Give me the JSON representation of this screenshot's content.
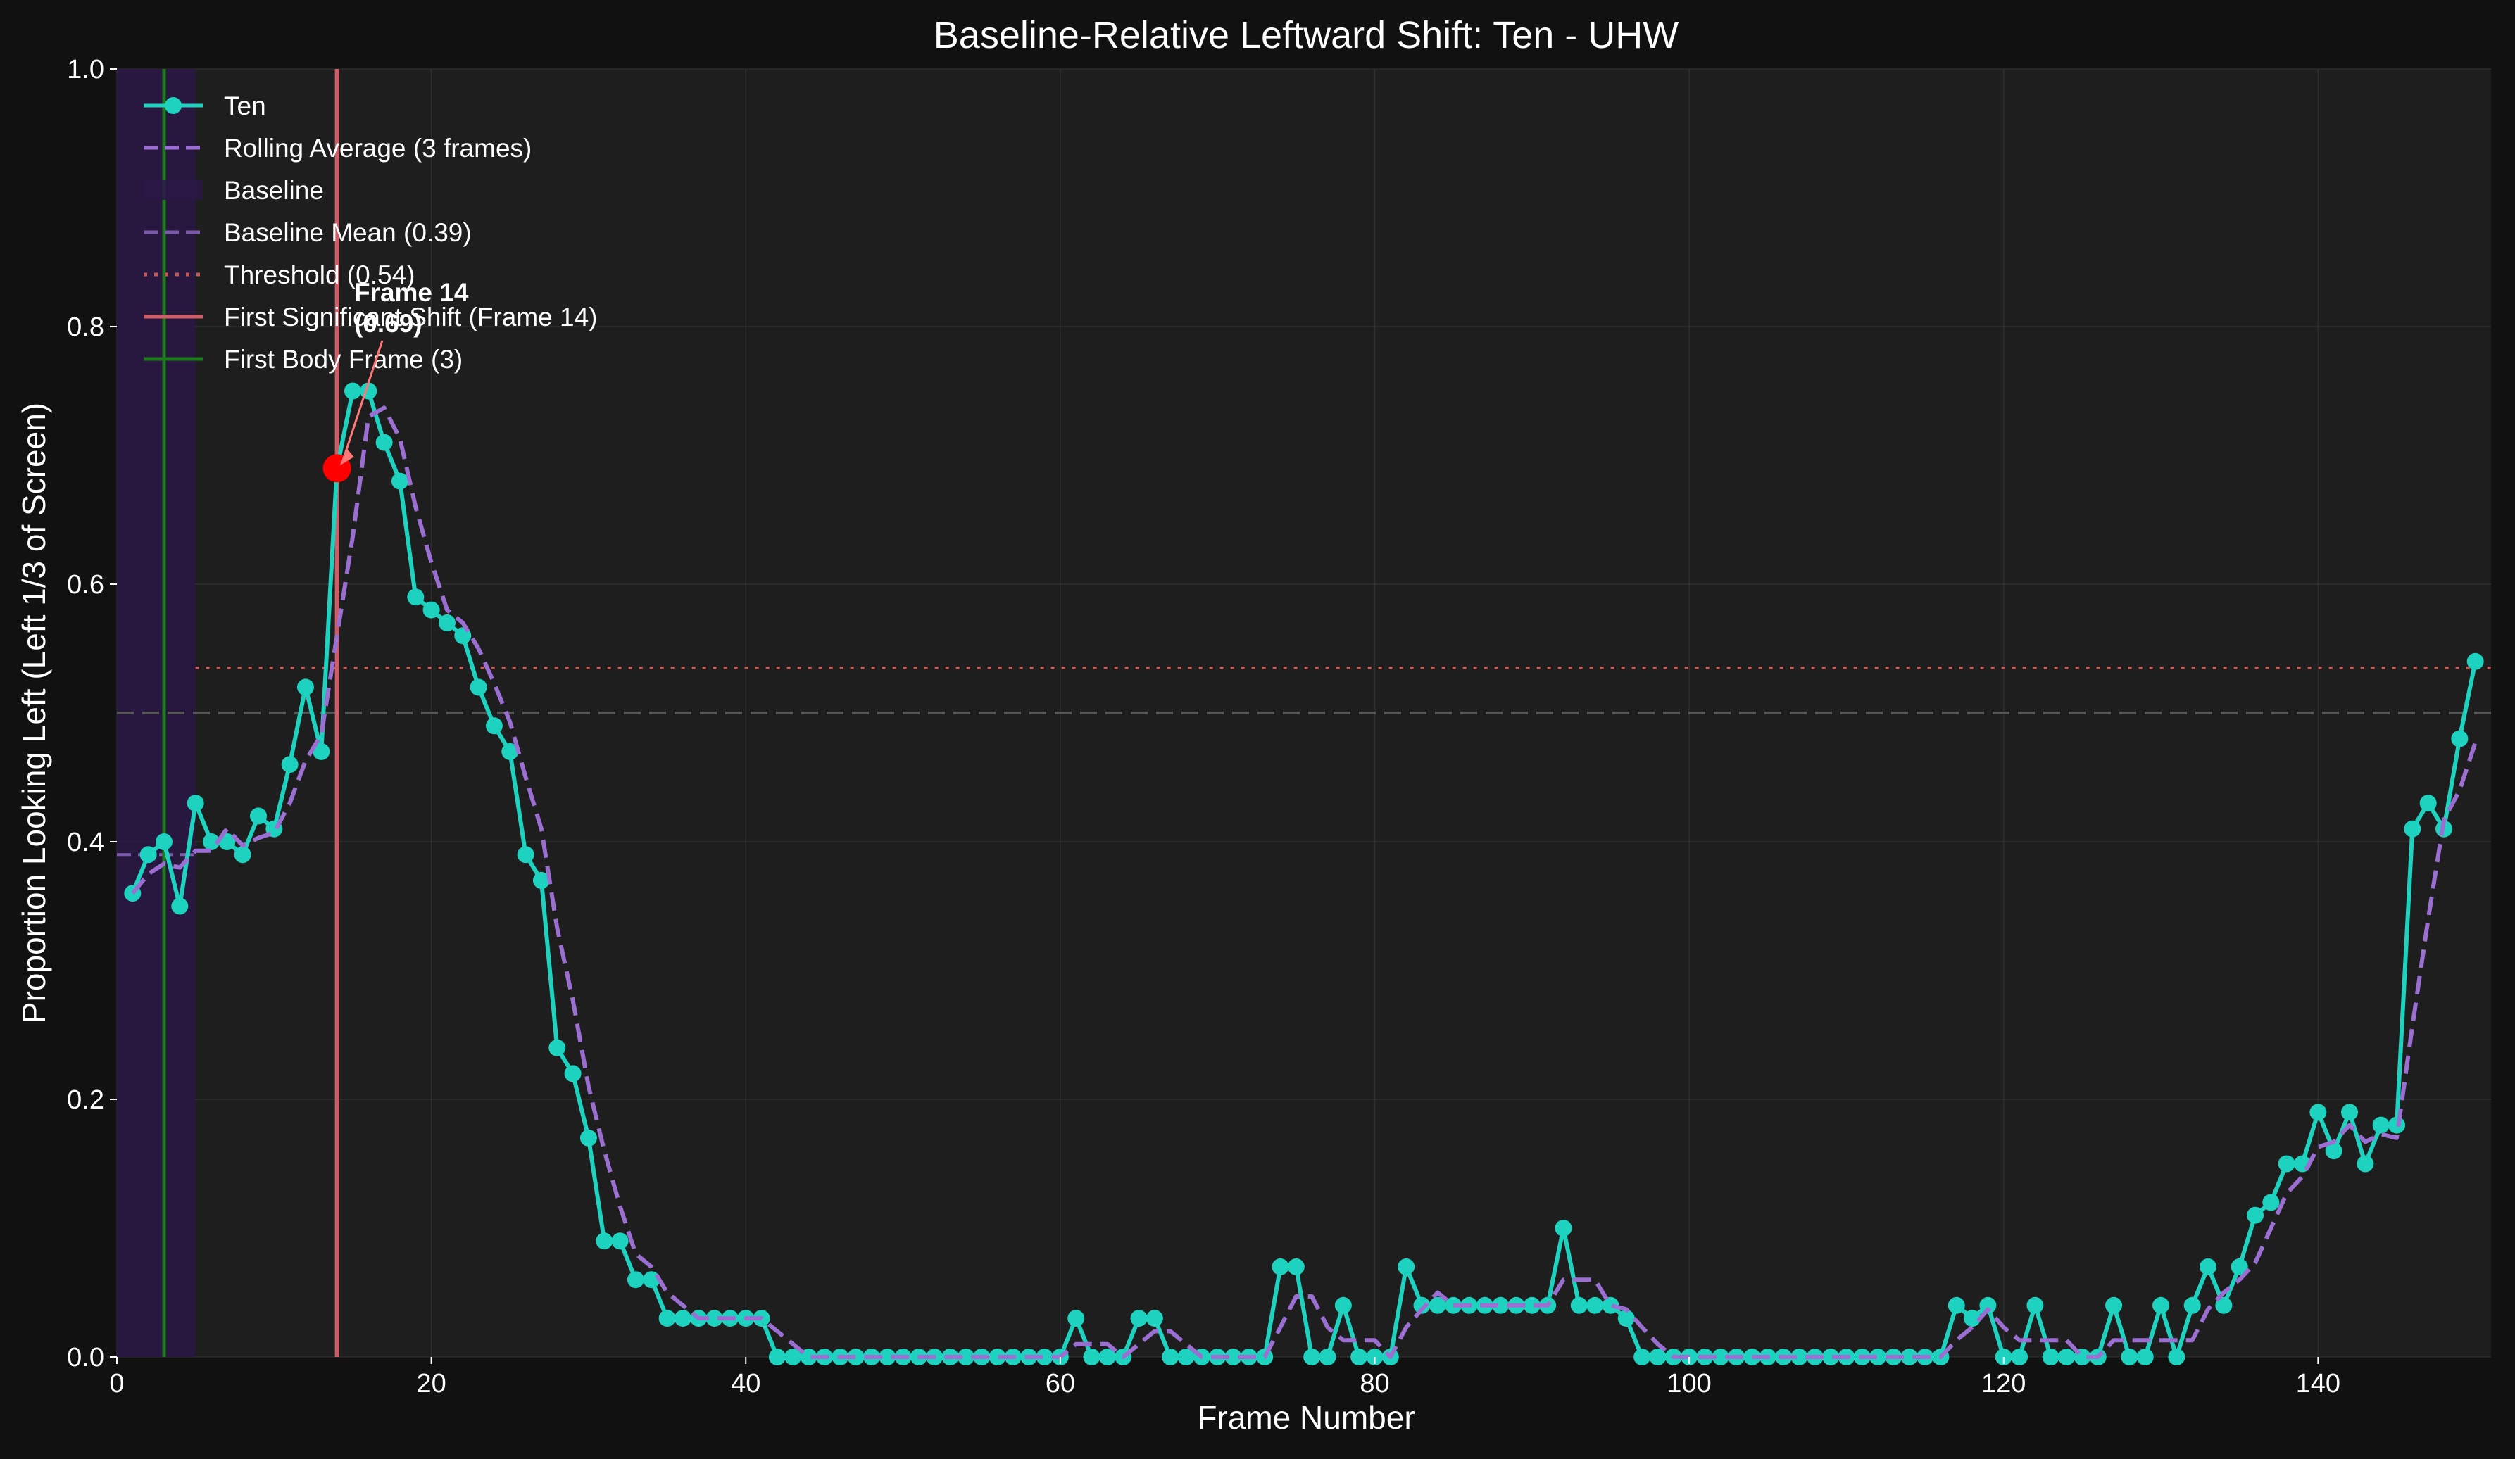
{
  "chart_data": {
    "type": "line",
    "title": "Baseline-Relative Leftward Shift: Ten - UHW",
    "xlabel": "Frame Number",
    "ylabel": "Proportion Looking Left (Left 1/3 of Screen)",
    "xlim": [
      0,
      151
    ],
    "ylim": [
      0,
      1.0
    ],
    "x_ticks": [
      0,
      20,
      40,
      60,
      80,
      100,
      120,
      140
    ],
    "y_ticks": [
      0.0,
      0.2,
      0.4,
      0.6,
      0.8,
      1.0
    ],
    "x_tick_labels": [
      "0",
      "20",
      "40",
      "60",
      "80",
      "100",
      "120",
      "140"
    ],
    "y_tick_labels": [
      "0.0",
      "0.2",
      "0.4",
      "0.6",
      "0.8",
      "1.0"
    ],
    "grid": true,
    "legend_position": "top-left",
    "colors": {
      "background": "#111111",
      "plot_background": "#1e1e1e",
      "series": "#1ed2c0",
      "rolling": "#9b6fd1",
      "baseline_region": "#2a1846",
      "baseline_mean": "#7a5aa8",
      "threshold": "#c45c5c",
      "first_shift": "#d05c66",
      "first_body": "#1f7a1f",
      "reference": "#555555",
      "highlight": "#ff0000"
    },
    "series": [
      {
        "name": "Ten",
        "x": [
          1,
          2,
          3,
          4,
          5,
          6,
          7,
          8,
          9,
          10,
          11,
          12,
          13,
          14,
          15,
          16,
          17,
          18,
          19,
          20,
          21,
          22,
          23,
          24,
          25,
          26,
          27,
          28,
          29,
          30,
          31,
          32,
          33,
          34,
          35,
          36,
          37,
          38,
          39,
          40,
          41,
          42,
          43,
          44,
          45,
          46,
          47,
          48,
          49,
          50,
          51,
          52,
          53,
          54,
          55,
          56,
          57,
          58,
          59,
          60,
          61,
          62,
          63,
          64,
          65,
          66,
          67,
          68,
          69,
          70,
          71,
          72,
          73,
          74,
          75,
          76,
          77,
          78,
          79,
          80,
          81,
          82,
          83,
          84,
          85,
          86,
          87,
          88,
          89,
          90,
          91,
          92,
          93,
          94,
          95,
          96,
          97,
          98,
          99,
          100,
          101,
          102,
          103,
          104,
          105,
          106,
          107,
          108,
          109,
          110,
          111,
          112,
          113,
          114,
          115,
          116,
          117,
          118,
          119,
          120,
          121,
          122,
          123,
          124,
          125,
          126,
          127,
          128,
          129,
          130,
          131,
          132,
          133,
          134,
          135,
          136,
          137,
          138,
          139,
          140,
          141,
          142,
          143,
          144,
          145,
          146,
          147,
          148,
          149,
          150
        ],
        "y": [
          0.36,
          0.39,
          0.4,
          0.35,
          0.43,
          0.4,
          0.4,
          0.39,
          0.42,
          0.41,
          0.46,
          0.52,
          0.47,
          0.69,
          0.75,
          0.75,
          0.71,
          0.68,
          0.59,
          0.58,
          0.57,
          0.56,
          0.52,
          0.49,
          0.47,
          0.39,
          0.37,
          0.24,
          0.22,
          0.17,
          0.09,
          0.09,
          0.06,
          0.06,
          0.03,
          0.03,
          0.03,
          0.03,
          0.03,
          0.03,
          0.03,
          0.0,
          0.0,
          0.0,
          0.0,
          0.0,
          0.0,
          0.0,
          0.0,
          0.0,
          0.0,
          0.0,
          0.0,
          0.0,
          0.0,
          0.0,
          0.0,
          0.0,
          0.0,
          0.0,
          0.03,
          0.0,
          0.0,
          0.0,
          0.03,
          0.03,
          0.0,
          0.0,
          0.0,
          0.0,
          0.0,
          0.0,
          0.0,
          0.07,
          0.07,
          0.0,
          0.0,
          0.04,
          0.0,
          0.0,
          0.0,
          0.07,
          0.04,
          0.04,
          0.04,
          0.04,
          0.04,
          0.04,
          0.04,
          0.04,
          0.04,
          0.1,
          0.04,
          0.04,
          0.04,
          0.03,
          0.0,
          0.0,
          0.0,
          0.0,
          0.0,
          0.0,
          0.0,
          0.0,
          0.0,
          0.0,
          0.0,
          0.0,
          0.0,
          0.0,
          0.0,
          0.0,
          0.0,
          0.0,
          0.0,
          0.0,
          0.04,
          0.03,
          0.04,
          0.0,
          0.0,
          0.04,
          0.0,
          0.0,
          0.0,
          0.0,
          0.04,
          0.0,
          0.0,
          0.04,
          0.0,
          0.04,
          0.07,
          0.04,
          0.07,
          0.11,
          0.12,
          0.15,
          0.15,
          0.19,
          0.16,
          0.19,
          0.15,
          0.18,
          0.18,
          0.41,
          0.43,
          0.41,
          0.48,
          0.54
        ]
      },
      {
        "name": "Rolling Average (3 frames)",
        "x": [
          1,
          2,
          3,
          4,
          5,
          6,
          7,
          8,
          9,
          10,
          11,
          12,
          13,
          14,
          15,
          16,
          17,
          18,
          19,
          20,
          21,
          22,
          23,
          24,
          25,
          26,
          27,
          28,
          29,
          30,
          31,
          32,
          33,
          34,
          35,
          36,
          37,
          38,
          39,
          40,
          41,
          42,
          43,
          44,
          45,
          46,
          47,
          48,
          49,
          50,
          51,
          52,
          53,
          54,
          55,
          56,
          57,
          58,
          59,
          60,
          61,
          62,
          63,
          64,
          65,
          66,
          67,
          68,
          69,
          70,
          71,
          72,
          73,
          74,
          75,
          76,
          77,
          78,
          79,
          80,
          81,
          82,
          83,
          84,
          85,
          86,
          87,
          88,
          89,
          90,
          91,
          92,
          93,
          94,
          95,
          96,
          97,
          98,
          99,
          100,
          101,
          102,
          103,
          104,
          105,
          106,
          107,
          108,
          109,
          110,
          111,
          112,
          113,
          114,
          115,
          116,
          117,
          118,
          119,
          120,
          121,
          122,
          123,
          124,
          125,
          126,
          127,
          128,
          129,
          130,
          131,
          132,
          133,
          134,
          135,
          136,
          137,
          138,
          139,
          140,
          141,
          142,
          143,
          144,
          145,
          146,
          147,
          148,
          149,
          150
        ],
        "y": [
          0.36,
          0.375,
          0.383,
          0.38,
          0.393,
          0.393,
          0.41,
          0.397,
          0.403,
          0.407,
          0.43,
          0.463,
          0.483,
          0.56,
          0.637,
          0.73,
          0.737,
          0.713,
          0.66,
          0.617,
          0.58,
          0.57,
          0.55,
          0.523,
          0.493,
          0.45,
          0.41,
          0.333,
          0.277,
          0.21,
          0.16,
          0.117,
          0.08,
          0.07,
          0.05,
          0.04,
          0.03,
          0.03,
          0.03,
          0.03,
          0.03,
          0.02,
          0.01,
          0.0,
          0.0,
          0.0,
          0.0,
          0.0,
          0.0,
          0.0,
          0.0,
          0.0,
          0.0,
          0.0,
          0.0,
          0.0,
          0.0,
          0.0,
          0.0,
          0.0,
          0.01,
          0.01,
          0.01,
          0.0,
          0.01,
          0.02,
          0.02,
          0.01,
          0.0,
          0.0,
          0.0,
          0.0,
          0.0,
          0.023,
          0.047,
          0.047,
          0.023,
          0.013,
          0.013,
          0.013,
          0.0,
          0.023,
          0.037,
          0.05,
          0.04,
          0.04,
          0.04,
          0.04,
          0.04,
          0.04,
          0.04,
          0.06,
          0.06,
          0.06,
          0.04,
          0.037,
          0.023,
          0.01,
          0.0,
          0.0,
          0.0,
          0.0,
          0.0,
          0.0,
          0.0,
          0.0,
          0.0,
          0.0,
          0.0,
          0.0,
          0.0,
          0.0,
          0.0,
          0.0,
          0.0,
          0.0,
          0.013,
          0.023,
          0.037,
          0.023,
          0.013,
          0.013,
          0.013,
          0.013,
          0.0,
          0.0,
          0.013,
          0.013,
          0.013,
          0.013,
          0.013,
          0.013,
          0.037,
          0.05,
          0.06,
          0.073,
          0.1,
          0.127,
          0.14,
          0.163,
          0.167,
          0.18,
          0.167,
          0.173,
          0.17,
          0.257,
          0.34,
          0.417,
          0.44,
          0.477
        ]
      }
    ],
    "legend": [
      {
        "label": "Ten",
        "kind": "line-marker",
        "color": "#1ed2c0"
      },
      {
        "label": "Rolling Average (3 frames)",
        "kind": "dashed",
        "color": "#9b6fd1"
      },
      {
        "label": "Baseline",
        "kind": "patch",
        "color": "#2a1846"
      },
      {
        "label": "Baseline Mean (0.39)",
        "kind": "dashed",
        "color": "#7a5aa8"
      },
      {
        "label": "Threshold (0.54)",
        "kind": "dotted",
        "color": "#c45c5c"
      },
      {
        "label": "First Significant Shift (Frame 14)",
        "kind": "solid",
        "color": "#d05c66"
      },
      {
        "label": "First Body Frame (3)",
        "kind": "solid",
        "color": "#1f7a1f"
      }
    ],
    "baseline_region": [
      0,
      5
    ],
    "baseline_mean": {
      "value": 0.39,
      "x_range": [
        0,
        5
      ]
    },
    "threshold": {
      "value": 0.535,
      "x_start": 5
    },
    "reference_line": {
      "value": 0.5
    },
    "first_shift_frame": 14,
    "first_body_frame": 3,
    "highlight_point": {
      "x": 14,
      "y": 0.69
    },
    "annotation": {
      "line1": "Frame 14",
      "line2": "(0.69)",
      "at_x": 14,
      "at_y": 0.69,
      "text_x": 15,
      "text_y": 0.8
    }
  }
}
